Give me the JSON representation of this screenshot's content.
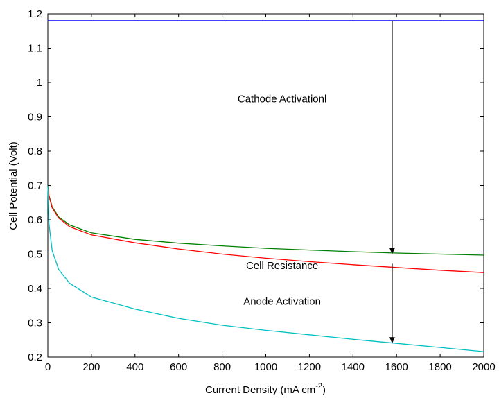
{
  "chart_data": {
    "type": "line",
    "title": "",
    "xlabel": "Current Density (mA cm",
    "xlabel_superscript": "-2",
    "xlabel_suffix": ")",
    "ylabel": "Cell Potential (Volt)",
    "xlim": [
      0,
      2000
    ],
    "ylim": [
      0.2,
      1.2
    ],
    "grid": false,
    "legend": "none",
    "x_ticks": [
      0,
      200,
      400,
      600,
      800,
      1000,
      1200,
      1400,
      1600,
      1800,
      2000
    ],
    "x_tick_labels": [
      "0",
      "200",
      "400",
      "600",
      "800",
      "1000",
      "1200",
      "1400",
      "1600",
      "1800",
      "2000"
    ],
    "y_ticks": [
      0.2,
      0.3,
      0.4,
      0.5,
      0.6,
      0.7,
      0.8,
      0.9,
      1.0,
      1.1,
      1.2
    ],
    "y_tick_labels": [
      "0.2",
      "0.3",
      "0.4",
      "0.5",
      "0.6",
      "0.7",
      "0.8",
      "0.9",
      "1",
      "1.1",
      "1.2"
    ],
    "series": [
      {
        "color": "#0000ff",
        "x": [
          0,
          2000
        ],
        "y": [
          1.18,
          1.18
        ]
      },
      {
        "color": "#008000",
        "x": [
          0,
          5,
          20,
          50,
          100,
          200,
          400,
          600,
          800,
          1000,
          1200,
          1400,
          1600,
          1800,
          2000
        ],
        "y": [
          0.7,
          0.672,
          0.638,
          0.608,
          0.585,
          0.562,
          0.543,
          0.532,
          0.524,
          0.517,
          0.512,
          0.507,
          0.503,
          0.5,
          0.497
        ]
      },
      {
        "color": "#ff0000",
        "x": [
          0,
          5,
          20,
          50,
          100,
          200,
          400,
          600,
          800,
          1000,
          1200,
          1400,
          1600,
          1800,
          2000
        ],
        "y": [
          0.7,
          0.67,
          0.635,
          0.605,
          0.58,
          0.556,
          0.533,
          0.515,
          0.5,
          0.488,
          0.478,
          0.469,
          0.461,
          0.453,
          0.446
        ]
      },
      {
        "color": "#00c0c0",
        "x": [
          0,
          5,
          20,
          50,
          100,
          200,
          400,
          600,
          800,
          1000,
          1200,
          1400,
          1600,
          1800,
          2000
        ],
        "y": [
          0.7,
          0.59,
          0.51,
          0.455,
          0.415,
          0.375,
          0.34,
          0.313,
          0.293,
          0.278,
          0.265,
          0.252,
          0.24,
          0.228,
          0.216
        ]
      }
    ],
    "arrows": [
      {
        "x": 1580,
        "y_from": 1.18,
        "y_to": 0.5
      },
      {
        "x": 1580,
        "y_from": 0.472,
        "y_to": 0.24
      }
    ],
    "annotations": [
      {
        "text": "Cathode Activationl",
        "x": 1075,
        "y": 0.953
      },
      {
        "text": "Cell Resistance",
        "x": 1075,
        "y": 0.467
      },
      {
        "text": "Anode Activation",
        "x": 1075,
        "y": 0.363
      }
    ]
  }
}
